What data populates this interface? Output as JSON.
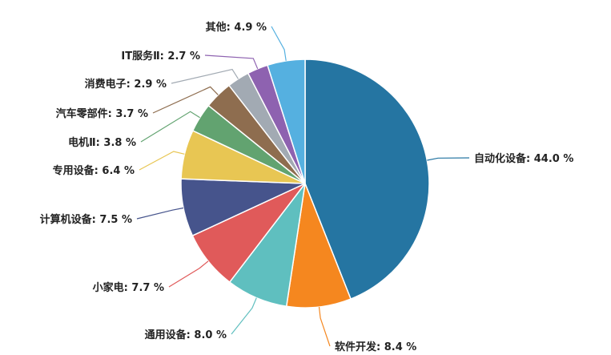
{
  "chart_data": {
    "type": "pie",
    "start_angle_deg": 0,
    "direction": "clockwise",
    "slices": [
      {
        "label": "自动化设备",
        "value": 44.0,
        "display": "44.0 %",
        "color": "#2575a2"
      },
      {
        "label": "软件开发",
        "value": 8.4,
        "display": "8.4 %",
        "color": "#f5871f"
      },
      {
        "label": "通用设备",
        "value": 8.0,
        "display": "8.0 %",
        "color": "#5fbfbf"
      },
      {
        "label": "小家电",
        "value": 7.7,
        "display": "7.7 %",
        "color": "#e05a5a"
      },
      {
        "label": "计算机设备",
        "value": 7.5,
        "display": "7.5 %",
        "color": "#46548c"
      },
      {
        "label": "专用设备",
        "value": 6.4,
        "display": "6.4 %",
        "color": "#e8c653"
      },
      {
        "label": "电机Ⅱ",
        "value": 3.8,
        "display": "3.8 %",
        "color": "#62a370"
      },
      {
        "label": "汽车零部件",
        "value": 3.7,
        "display": "3.7 %",
        "color": "#8e6d4f"
      },
      {
        "label": "消费电子",
        "value": 2.9,
        "display": "2.9 %",
        "color": "#a2aab3"
      },
      {
        "label": "IT服务Ⅱ",
        "value": 2.7,
        "display": "2.7 %",
        "color": "#8e62b0"
      },
      {
        "label": "其他",
        "value": 4.9,
        "display": "4.9 %",
        "color": "#55b0e0"
      }
    ]
  }
}
